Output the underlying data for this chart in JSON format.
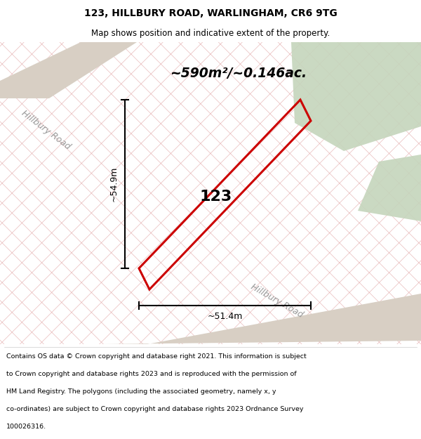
{
  "title_line1": "123, HILLBURY ROAD, WARLINGHAM, CR6 9TG",
  "title_line2": "Map shows position and indicative extent of the property.",
  "area_text": "~590m²/~0.146ac.",
  "label_123": "123",
  "dim_height": "~54.9m",
  "dim_width": "~51.4m",
  "road_label_upper": "Hillbury Road",
  "road_label_lower": "Hillbury Road",
  "footer_lines": [
    "Contains OS data © Crown copyright and database right 2021. This information is subject",
    "to Crown copyright and database rights 2023 and is reproduced with the permission of",
    "HM Land Registry. The polygons (including the associated geometry, namely x, y",
    "co-ordinates) are subject to Crown copyright and database rights 2023 Ordnance Survey",
    "100026316."
  ],
  "map_bg": "#f7f2ed",
  "property_outline_color": "#cc0000",
  "green_area_color": "#c5d5bc",
  "road_color": "#d8cfc4",
  "hatch_color": "#e0a0a0",
  "figsize": [
    6.0,
    6.25
  ],
  "dpi": 100
}
